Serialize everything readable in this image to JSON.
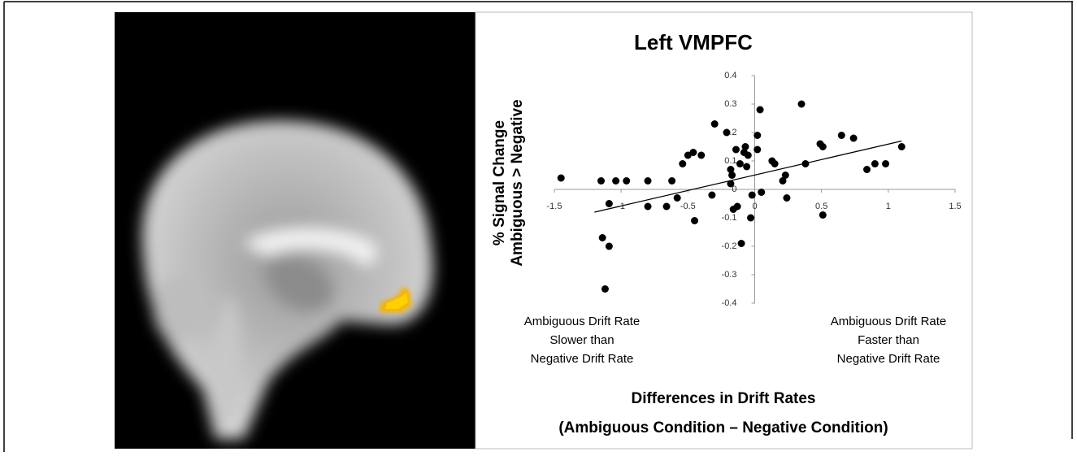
{
  "chart_data": {
    "type": "scatter",
    "title": "Left VMPFC",
    "y_label": [
      "% Signal Change",
      "Ambiguous > Negative"
    ],
    "x_label": [
      "Differences in Drift Rates",
      "(Ambiguous Condition – Negative Condition)"
    ],
    "annotations": [
      [
        "Ambiguous Drift Rate",
        "Slower than",
        "Negative Drift Rate"
      ],
      [
        "Ambiguous Drift Rate",
        "Faster than",
        "Negative Drift Rate"
      ]
    ],
    "xlim": [
      -1.5,
      1.5
    ],
    "xticks": [
      -1.5,
      -1,
      -0.5,
      0,
      0.5,
      1,
      1.5
    ],
    "ylim": [
      -0.4,
      0.4
    ],
    "yticks": [
      -0.4,
      -0.3,
      -0.2,
      -0.1,
      0,
      0.1,
      0.2,
      0.3,
      0.4
    ],
    "color": "#000000",
    "x": [
      -1.45,
      -1.15,
      -1.04,
      -0.96,
      -1.09,
      -1.14,
      -1.09,
      -1.12,
      -0.8,
      -0.8,
      -0.66,
      -0.62,
      -0.58,
      -0.54,
      -0.5,
      -0.46,
      -0.4,
      -0.45,
      -0.32,
      -0.3,
      -0.21,
      -0.18,
      -0.18,
      -0.17,
      -0.16,
      -0.13,
      -0.14,
      -0.11,
      -0.1,
      -0.08,
      -0.07,
      -0.06,
      -0.05,
      -0.03,
      -0.02,
      0.02,
      0.02,
      0.04,
      0.05,
      0.13,
      0.15,
      0.21,
      0.23,
      0.24,
      0.35,
      0.38,
      0.49,
      0.51,
      0.51,
      0.65,
      0.74,
      0.84,
      0.9,
      0.98,
      1.1
    ],
    "y": [
      0.04,
      0.03,
      0.03,
      0.03,
      -0.05,
      -0.17,
      -0.2,
      -0.35,
      0.03,
      -0.06,
      -0.06,
      0.03,
      -0.03,
      0.09,
      0.12,
      0.13,
      0.12,
      -0.11,
      -0.02,
      0.23,
      0.2,
      0.07,
      0.02,
      0.05,
      -0.07,
      -0.06,
      0.14,
      0.09,
      -0.19,
      0.13,
      0.15,
      0.08,
      0.12,
      -0.1,
      -0.02,
      0.14,
      0.19,
      0.28,
      -0.01,
      0.1,
      0.09,
      0.03,
      0.05,
      -0.03,
      0.3,
      0.09,
      0.16,
      0.15,
      -0.09,
      0.19,
      0.18,
      0.07,
      0.09,
      0.09,
      0.15
    ],
    "trendline": {
      "x": [
        -1.2,
        1.1
      ],
      "y": [
        -0.08,
        0.17
      ]
    }
  }
}
